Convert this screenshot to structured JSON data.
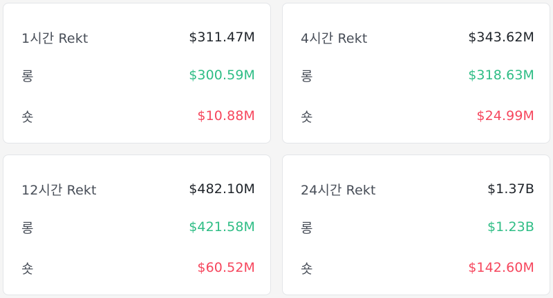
{
  "cards": [
    {
      "title": "1시간 Rekt",
      "total": "$311.47M",
      "long_label": "롱",
      "long_value": "$300.59M",
      "short_label": "숏",
      "short_value": "$10.88M"
    },
    {
      "title": "4시간 Rekt",
      "total": "$343.62M",
      "long_label": "롱",
      "long_value": "$318.63M",
      "short_label": "숏",
      "short_value": "$24.99M"
    },
    {
      "title": "12시간 Rekt",
      "total": "$482.10M",
      "long_label": "롱",
      "long_value": "$421.58M",
      "short_label": "숏",
      "short_value": "$60.52M"
    },
    {
      "title": "24시간 Rekt",
      "total": "$1.37B",
      "long_label": "롱",
      "long_value": "$1.23B",
      "short_label": "숏",
      "short_value": "$142.60M"
    }
  ],
  "colors": {
    "long": "#2ebd85",
    "short": "#f6465d",
    "text": "#1e2329",
    "label": "#474d57"
  }
}
